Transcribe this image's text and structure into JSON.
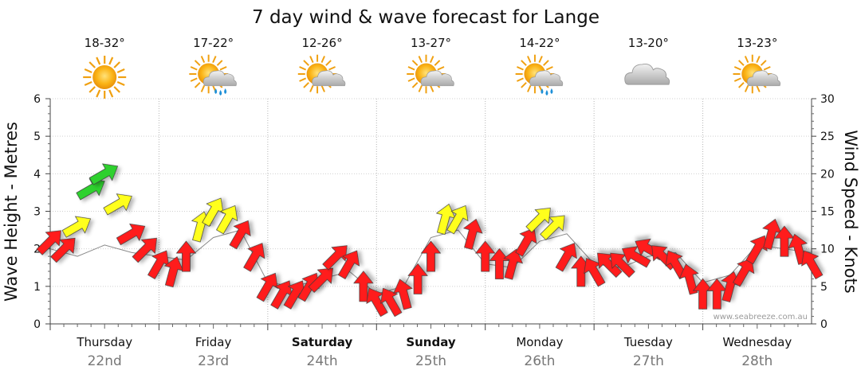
{
  "chart_data": {
    "type": "line",
    "title": "7 day wind & wave forecast for Lange",
    "ylabel_left": "Wave Height - Metres",
    "ylabel_right": "Wind Speed - Knots",
    "y_left_range": [
      0,
      6
    ],
    "y_left_ticks": [
      "0",
      "1",
      "2",
      "3",
      "4",
      "5",
      "6"
    ],
    "y_right_range": [
      0,
      30
    ],
    "y_right_ticks": [
      "0",
      "5",
      "10",
      "15",
      "20",
      "25",
      "30"
    ],
    "days": [
      {
        "name": "Thursday",
        "date": "22nd",
        "temp": "18-32°",
        "icon": "sun-icon",
        "bold": false
      },
      {
        "name": "Friday",
        "date": "23rd",
        "temp": "17-22°",
        "icon": "sun-cloud-rain-icon",
        "bold": false
      },
      {
        "name": "Saturday",
        "date": "24th",
        "temp": "12-26°",
        "icon": "sun-cloud-icon",
        "bold": true
      },
      {
        "name": "Sunday",
        "date": "25th",
        "temp": "13-27°",
        "icon": "sun-cloud-icon",
        "bold": true
      },
      {
        "name": "Monday",
        "date": "26th",
        "temp": "14-22°",
        "icon": "sun-cloud-rain-icon",
        "bold": false
      },
      {
        "name": "Tuesday",
        "date": "27th",
        "temp": "13-20°",
        "icon": "cloud-icon",
        "bold": false
      },
      {
        "name": "Wednesday",
        "date": "28th",
        "temp": "13-23°",
        "icon": "sun-cloud-icon",
        "bold": false
      }
    ],
    "wind_series": {
      "x_day": [
        0.0,
        0.13,
        0.25,
        0.38,
        0.5,
        0.63,
        0.75,
        0.88,
        1.0,
        1.13,
        1.25,
        1.38,
        1.5,
        1.63,
        1.75,
        1.88,
        2.0,
        2.13,
        2.25,
        2.38,
        2.5,
        2.63,
        2.75,
        2.88,
        3.0,
        3.13,
        3.25,
        3.38,
        3.5,
        3.63,
        3.75,
        3.88,
        4.0,
        4.13,
        4.25,
        4.38,
        4.5,
        4.63,
        4.75,
        4.88,
        5.0,
        5.13,
        5.25,
        5.38,
        5.5,
        5.63,
        5.75,
        5.88,
        6.0,
        6.13,
        6.25,
        6.38,
        6.5,
        6.63,
        6.75,
        6.88,
        7.0
      ],
      "knots": [
        11,
        10,
        13,
        18,
        20,
        16,
        12,
        10,
        8,
        7,
        9,
        13,
        15,
        14,
        12,
        9,
        5,
        4,
        4,
        5,
        6,
        9,
        8,
        5,
        3,
        3,
        4,
        6,
        9,
        14,
        14,
        12,
        9,
        8,
        8,
        11,
        14,
        13,
        9,
        7,
        7,
        8,
        8,
        9,
        10,
        9,
        8,
        6,
        4,
        4,
        5,
        7,
        10,
        12,
        11,
        10,
        8
      ],
      "direction_deg": [
        45,
        45,
        30,
        30,
        30,
        30,
        30,
        45,
        60,
        75,
        90,
        75,
        60,
        60,
        60,
        60,
        60,
        60,
        60,
        60,
        45,
        45,
        60,
        90,
        120,
        120,
        105,
        90,
        90,
        75,
        60,
        75,
        90,
        90,
        75,
        60,
        45,
        45,
        60,
        90,
        120,
        135,
        135,
        150,
        150,
        135,
        120,
        105,
        90,
        90,
        75,
        60,
        60,
        75,
        90,
        105,
        120
      ]
    },
    "wave_series": {
      "x_day": [
        0.0,
        0.25,
        0.5,
        0.75,
        1.0,
        1.25,
        1.5,
        1.75,
        2.0,
        2.25,
        2.5,
        2.75,
        3.0,
        3.25,
        3.5,
        3.75,
        4.0,
        4.25,
        4.5,
        4.75,
        5.0,
        5.25,
        5.5,
        5.75,
        6.0,
        6.25,
        6.5,
        6.75,
        7.0
      ],
      "metres": [
        2.0,
        1.8,
        2.1,
        1.9,
        1.8,
        1.7,
        2.3,
        2.5,
        1.1,
        1.0,
        1.2,
        1.4,
        0.8,
        1.0,
        2.3,
        2.5,
        1.6,
        1.5,
        2.2,
        2.4,
        1.6,
        1.5,
        1.8,
        1.9,
        1.1,
        1.3,
        2.1,
        2.0,
        1.9
      ]
    },
    "color_scale": [
      {
        "max_knots": 12,
        "color": "#ff1a1a"
      },
      {
        "max_knots": 17,
        "color": "#ffff1a"
      },
      {
        "max_knots": 30,
        "color": "#2fd12f"
      }
    ],
    "credit": "www.seabreeze.com.au"
  }
}
